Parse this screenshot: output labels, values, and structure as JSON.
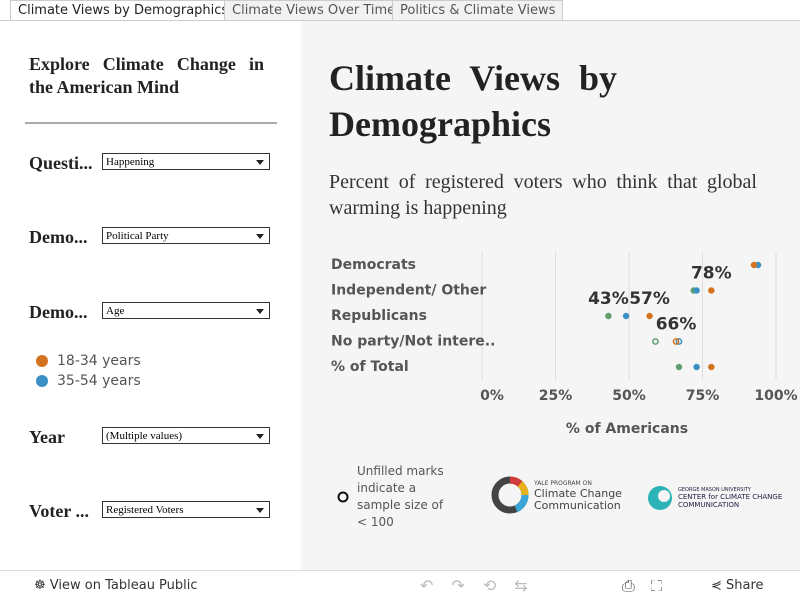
{
  "tabs": [
    "Climate Views by Demographics",
    "Climate Views Over Time",
    "Politics & Climate Views"
  ],
  "sidebar": {
    "title": "Explore Climate Change in the American Mind",
    "controls": [
      {
        "label": "Questi...",
        "value": "Happening"
      },
      {
        "label": "Demo...",
        "value": "Political Party"
      },
      {
        "label": "Demo...",
        "value": "Age"
      },
      {
        "label": "Year",
        "value": "(Multiple values)"
      },
      {
        "label": "Voter ...",
        "value": "Registered Voters"
      }
    ]
  },
  "header": {
    "title": "Climate Views by Demographics",
    "subtitle": "Percent of registered voters who think that global warming is happening"
  },
  "chart_data": {
    "type": "dot",
    "categories": [
      "Democrats",
      "Independent/ Other",
      "Republicans",
      "No party/Not intere..",
      "% of Total"
    ],
    "unfilled": [
      false,
      false,
      false,
      true,
      false
    ],
    "series": [
      {
        "name": "18-34 years",
        "color": "#d4731f",
        "values": [
          92.5,
          78,
          57,
          66,
          78
        ],
        "value_labels": [
          null,
          "78%",
          "57%",
          "66%",
          null
        ]
      },
      {
        "name": "35-54 years",
        "color": "#3a8fc4",
        "values": [
          93.9,
          73,
          49,
          67,
          73
        ]
      },
      {
        "color": "#5f9e6e",
        "values": [
          null,
          72,
          43,
          59,
          67
        ],
        "value_labels": [
          null,
          null,
          "43%",
          null,
          null
        ]
      }
    ],
    "xlim": [
      0,
      100
    ],
    "xticks": [
      {
        "value": 0,
        "label": "0%"
      },
      {
        "value": 25,
        "label": "25%"
      },
      {
        "value": 50,
        "label": "50%"
      },
      {
        "value": 75,
        "label": "75%"
      },
      {
        "value": 100,
        "label": "100%"
      }
    ],
    "xlabel": "% of Americans",
    "grid": true
  },
  "note": "Unfilled marks indicate a sample size of < 100",
  "logos": {
    "yale": [
      "YALE PROGRAM ON",
      "Climate Change",
      "Communication"
    ],
    "gmu": [
      "GEORGE MASON UNIVERSITY",
      "CENTER for CLIMATE CHANGE",
      "COMMUNICATION"
    ]
  },
  "footer": {
    "view": "View on Tableau Public",
    "share": "Share"
  }
}
